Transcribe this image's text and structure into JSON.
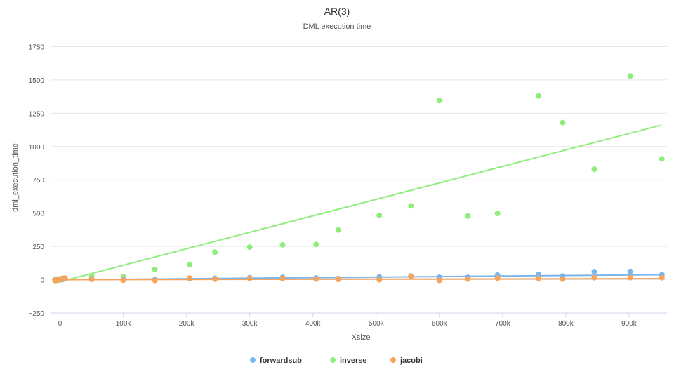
{
  "chart_data": {
    "type": "scatter",
    "title": "AR(3)",
    "subtitle": "DML execution time",
    "xlabel": "Xsize",
    "ylabel": "dml_execution_time",
    "xlim": [
      -15000,
      960000
    ],
    "ylim": [
      -250,
      1800
    ],
    "xticks": [
      0,
      100000,
      200000,
      300000,
      400000,
      500000,
      600000,
      700000,
      800000,
      900000
    ],
    "xtick_labels": [
      "0",
      "100k",
      "200k",
      "300k",
      "400k",
      "500k",
      "600k",
      "700k",
      "800k",
      "900k"
    ],
    "yticks": [
      -250,
      0,
      250,
      500,
      750,
      1000,
      1250,
      1500,
      1750
    ],
    "ytick_labels": [
      "−250",
      "0",
      "250",
      "500",
      "750",
      "1000",
      "1250",
      "1500",
      "1750"
    ],
    "grid": "horizontal",
    "legend_position": "bottom-center",
    "series": [
      {
        "name": "forwardsub",
        "color": "#7cb5ec",
        "points": [
          [
            -8000,
            -3
          ],
          [
            -4000,
            3
          ],
          [
            0,
            5
          ],
          [
            4000,
            2
          ],
          [
            8000,
            8
          ],
          [
            50000,
            4
          ],
          [
            100000,
            3
          ],
          [
            150000,
            1
          ],
          [
            205000,
            10
          ],
          [
            245000,
            10
          ],
          [
            300000,
            15
          ],
          [
            352000,
            18
          ],
          [
            405000,
            13
          ],
          [
            440000,
            8
          ],
          [
            505000,
            20
          ],
          [
            555000,
            28
          ],
          [
            600000,
            18
          ],
          [
            645000,
            18
          ],
          [
            692000,
            35
          ],
          [
            757000,
            40
          ],
          [
            795000,
            28
          ],
          [
            845000,
            60
          ],
          [
            902000,
            62
          ],
          [
            952000,
            38
          ]
        ],
        "trend": [
          [
            -8000,
            -1
          ],
          [
            955000,
            38
          ]
        ]
      },
      {
        "name": "inverse",
        "color": "#90ed7d",
        "points": [
          [
            -8000,
            3
          ],
          [
            0,
            6
          ],
          [
            5000,
            10
          ],
          [
            50000,
            25
          ],
          [
            100000,
            23
          ],
          [
            150000,
            77
          ],
          [
            205000,
            112
          ],
          [
            245000,
            207
          ],
          [
            300000,
            245
          ],
          [
            352000,
            262
          ],
          [
            405000,
            265
          ],
          [
            440000,
            373
          ],
          [
            505000,
            483
          ],
          [
            555000,
            555
          ],
          [
            600000,
            1345
          ],
          [
            645000,
            478
          ],
          [
            692000,
            498
          ],
          [
            757000,
            1380
          ],
          [
            795000,
            1180
          ],
          [
            845000,
            830
          ],
          [
            902000,
            1530
          ],
          [
            952000,
            908
          ]
        ],
        "trend": [
          [
            -8000,
            -25
          ],
          [
            950000,
            1160
          ]
        ]
      },
      {
        "name": "jacobi",
        "color": "#f7a35c",
        "points": [
          [
            -8000,
            -5
          ],
          [
            -4000,
            5
          ],
          [
            0,
            -2
          ],
          [
            4000,
            10
          ],
          [
            8000,
            12
          ],
          [
            50000,
            3
          ],
          [
            100000,
            -3
          ],
          [
            150000,
            -5
          ],
          [
            205000,
            12
          ],
          [
            245000,
            5
          ],
          [
            300000,
            10
          ],
          [
            352000,
            8
          ],
          [
            405000,
            5
          ],
          [
            440000,
            3
          ],
          [
            505000,
            0
          ],
          [
            555000,
            25
          ],
          [
            600000,
            -5
          ],
          [
            645000,
            5
          ],
          [
            692000,
            12
          ],
          [
            757000,
            10
          ],
          [
            795000,
            5
          ],
          [
            845000,
            15
          ],
          [
            902000,
            15
          ],
          [
            952000,
            15
          ]
        ],
        "trend": [
          [
            -8000,
            0
          ],
          [
            955000,
            8
          ]
        ]
      }
    ]
  }
}
